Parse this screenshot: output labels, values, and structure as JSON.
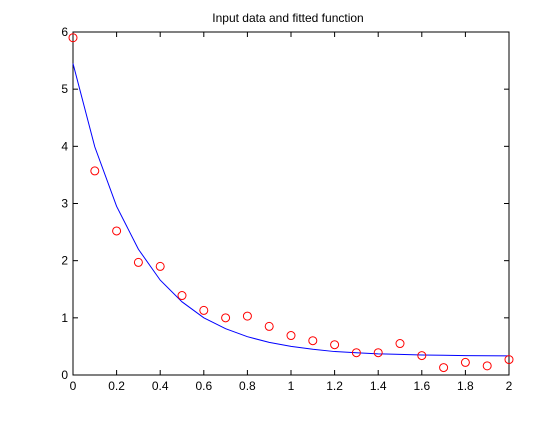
{
  "chart_data": {
    "type": "scatter",
    "title": "Input data and fitted function",
    "xlabel": "",
    "ylabel": "",
    "xlim": [
      0,
      2
    ],
    "ylim": [
      0,
      6
    ],
    "xticks": [
      0,
      0.2,
      0.4,
      0.6,
      0.8,
      1,
      1.2,
      1.4,
      1.6,
      1.8,
      2
    ],
    "xtick_labels": [
      "0",
      "0.2",
      "0.4",
      "0.6",
      "0.8",
      "1",
      "1.2",
      "1.4",
      "1.6",
      "1.8",
      "2"
    ],
    "yticks": [
      0,
      1,
      2,
      3,
      4,
      5,
      6
    ],
    "ytick_labels": [
      "0",
      "1",
      "2",
      "3",
      "4",
      "5",
      "6"
    ],
    "grid": false,
    "series": [
      {
        "kind": "scatter",
        "marker": "circle-open",
        "color": "#ff0000",
        "x": [
          0,
          0.1,
          0.2,
          0.3,
          0.4,
          0.5,
          0.6,
          0.7,
          0.8,
          0.9,
          1.0,
          1.1,
          1.2,
          1.3,
          1.4,
          1.5,
          1.6,
          1.7,
          1.8,
          1.9,
          2.0
        ],
        "y": [
          5.9,
          3.57,
          2.52,
          1.97,
          1.9,
          1.39,
          1.13,
          1.0,
          1.03,
          0.85,
          0.69,
          0.6,
          0.53,
          0.39,
          0.39,
          0.55,
          0.34,
          0.13,
          0.22,
          0.16,
          0.27
        ]
      },
      {
        "kind": "line",
        "color": "#0000ff",
        "x": [
          0,
          0.1,
          0.2,
          0.3,
          0.4,
          0.5,
          0.6,
          0.7,
          0.8,
          0.9,
          1.0,
          1.1,
          1.2,
          1.3,
          1.4,
          1.5,
          1.6,
          1.7,
          1.8,
          1.9,
          2.0
        ],
        "y": [
          5.45,
          3.99,
          2.95,
          2.2,
          1.66,
          1.28,
          1.0,
          0.81,
          0.67,
          0.57,
          0.5,
          0.45,
          0.41,
          0.39,
          0.37,
          0.36,
          0.35,
          0.345,
          0.34,
          0.337,
          0.335
        ]
      }
    ]
  }
}
